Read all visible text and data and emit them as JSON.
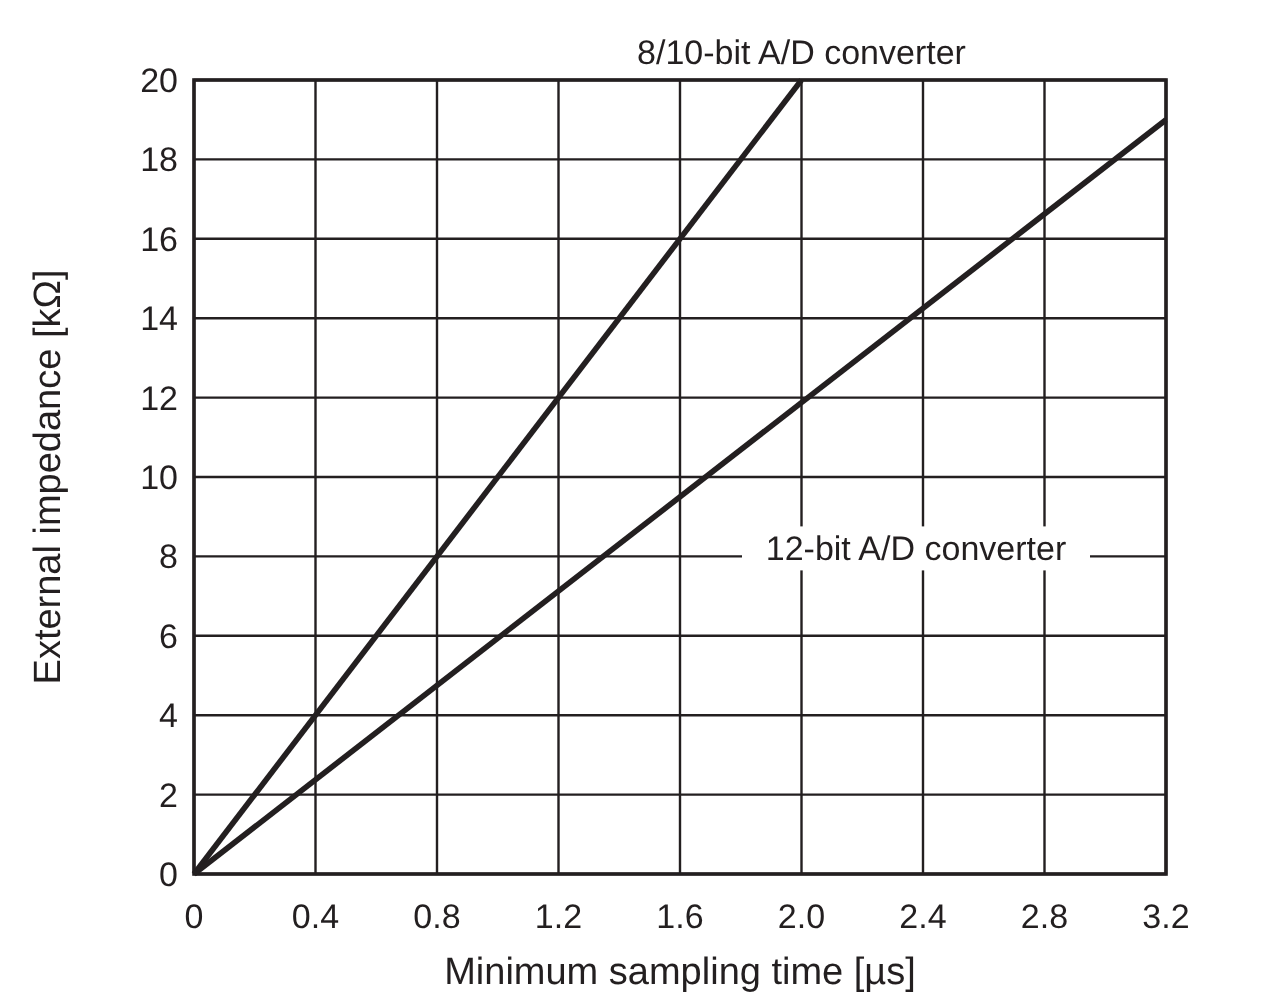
{
  "chart_data": {
    "type": "line",
    "xlabel": "Minimum sampling time [µs]",
    "ylabel": "External impedance [kΩ]",
    "series": [
      {
        "name": "8/10-bit A/D converter",
        "color": "#231f20",
        "x": [
          0,
          2.0
        ],
        "values": [
          0,
          20
        ]
      },
      {
        "name": "12-bit A/D converter",
        "color": "#231f20",
        "x": [
          0,
          3.2
        ],
        "values": [
          0,
          19
        ]
      }
    ],
    "xlim": [
      0,
      3.2
    ],
    "xticks": [
      0,
      0.4,
      0.8,
      1.2,
      1.6,
      {
        "value": 2,
        "label": "2.0"
      },
      2.4,
      2.8,
      3.2
    ],
    "ylim": [
      0,
      20
    ],
    "yticks": [
      0,
      2,
      4,
      6,
      8,
      10,
      12,
      14,
      16,
      18,
      20
    ],
    "grid": true,
    "marker": "none",
    "line_style": "solid"
  }
}
